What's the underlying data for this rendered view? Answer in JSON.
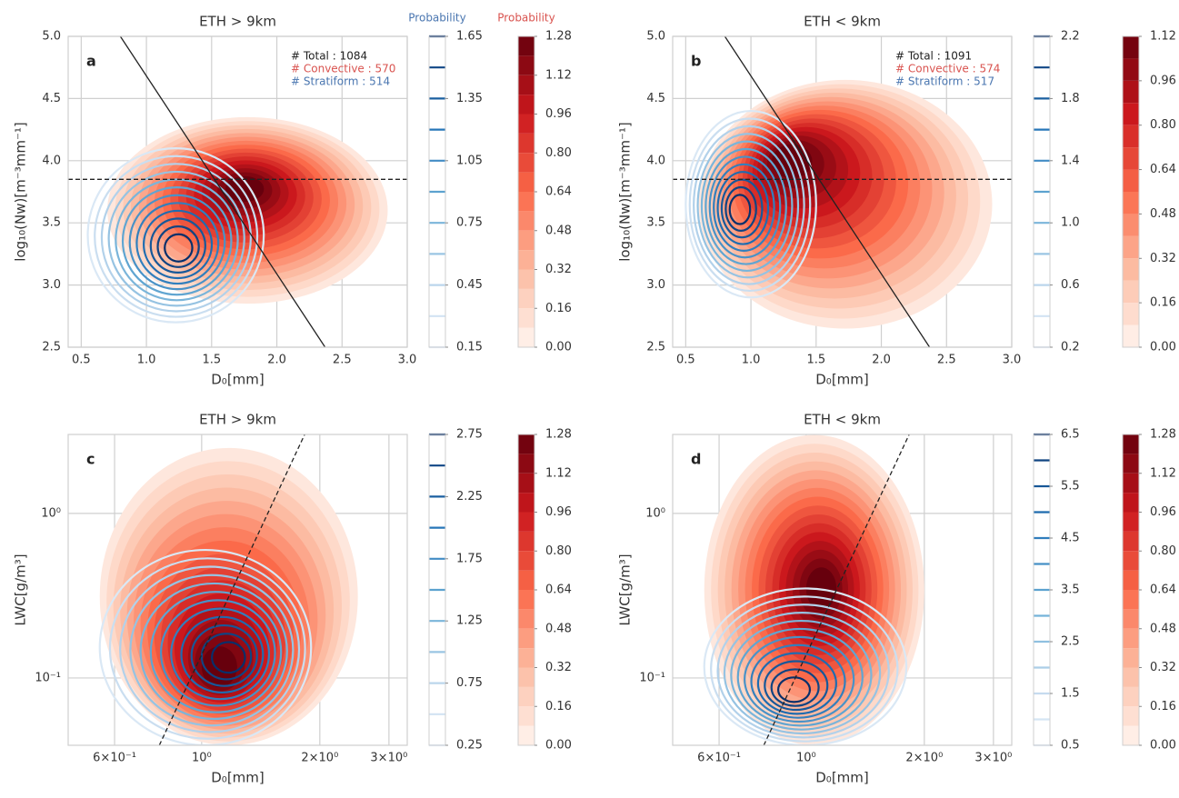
{
  "chart_data": [
    {
      "type": "contour",
      "title": "ETH > 9km",
      "panel_label": "a",
      "xlabel": "D₀[mm]",
      "ylabel": "log₁₀(Nw)[m⁻³mm⁻¹]",
      "xlim": [
        0.4,
        3.0
      ],
      "xticks": [
        0.5,
        {
          "value": 1,
          "label": "1.0"
        },
        1.5,
        {
          "value": 2,
          "label": "2.0"
        },
        2.5,
        {
          "value": 3,
          "label": "3.0"
        }
      ],
      "ylim": [
        2.5,
        5.0
      ],
      "yticks": [
        2.5,
        {
          "value": 3,
          "label": "3.0"
        },
        3.5,
        {
          "value": 4,
          "label": "4.0"
        },
        4.5,
        {
          "value": 5,
          "label": "5.0"
        }
      ],
      "annotations": [
        {
          "text": "# Total : 1084",
          "color": "#222222"
        },
        {
          "text": "# Convective : 570",
          "color": "#d9534f"
        },
        {
          "text": "# Stratiform : 514",
          "color": "#4a76b0"
        }
      ],
      "lines": [
        {
          "x": [
            0.8,
            2.37
          ],
          "y": [
            5.0,
            2.5
          ],
          "style": "solid"
        },
        {
          "x": [
            0.4,
            3.0
          ],
          "y": [
            3.85,
            3.85
          ],
          "style": "dashed"
        }
      ],
      "series": [
        {
          "colormap": "reds",
          "peak": [
            1.75,
            3.8
          ],
          "xrange": [
            0.7,
            2.85
          ],
          "yrange": [
            2.85,
            4.35
          ],
          "colorbar": {
            "label": "Probability",
            "lim": [
              0,
              1.28
            ],
            "ticks": [
              {
                "value": 0,
                "label": "0.00"
              },
              0.16,
              0.32,
              0.48,
              0.64,
              {
                "value": 0.8,
                "label": "0.80"
              },
              0.96,
              1.12,
              1.28
            ]
          }
        },
        {
          "colormap": "blues",
          "peak": [
            1.25,
            3.28
          ],
          "xrange": [
            0.55,
            1.9
          ],
          "yrange": [
            2.7,
            4.1
          ],
          "colorbar": {
            "label": "Probability",
            "lim": [
              0.15,
              1.65
            ],
            "ticks": [
              0.15,
              0.45,
              0.75,
              1.05,
              1.35,
              1.65
            ]
          }
        }
      ]
    },
    {
      "type": "contour",
      "title": "ETH < 9km",
      "panel_label": "b",
      "xlabel": "D₀[mm]",
      "ylabel": "log₁₀(Nw)[m⁻³mm⁻¹]",
      "xlim": [
        0.4,
        3.0
      ],
      "xticks": [
        0.5,
        {
          "value": 1,
          "label": "1.0"
        },
        1.5,
        {
          "value": 2,
          "label": "2.0"
        },
        2.5,
        {
          "value": 3,
          "label": "3.0"
        }
      ],
      "ylim": [
        2.5,
        5.0
      ],
      "yticks": [
        2.5,
        {
          "value": 3,
          "label": "3.0"
        },
        3.5,
        {
          "value": 4,
          "label": "4.0"
        },
        4.5,
        {
          "value": 5,
          "label": "5.0"
        }
      ],
      "annotations": [
        {
          "text": "# Total : 1091",
          "color": "#222222"
        },
        {
          "text": "# Convective : 574",
          "color": "#d9534f"
        },
        {
          "text": "# Stratiform : 517",
          "color": "#4a76b0"
        }
      ],
      "lines": [
        {
          "x": [
            0.8,
            2.37
          ],
          "y": [
            5.0,
            2.5
          ],
          "style": "solid"
        },
        {
          "x": [
            0.4,
            3.0
          ],
          "y": [
            3.85,
            3.85
          ],
          "style": "dashed"
        }
      ],
      "series": [
        {
          "colormap": "reds",
          "peak": [
            1.25,
            4.05
          ],
          "xrange": [
            0.6,
            2.85
          ],
          "yrange": [
            2.65,
            4.65
          ],
          "colorbar": {
            "lim": [
              0,
              1.12
            ],
            "ticks": [
              {
                "value": 0,
                "label": "0.00"
              },
              0.16,
              0.32,
              0.48,
              0.64,
              {
                "value": 0.8,
                "label": "0.80"
              },
              0.96,
              1.12
            ]
          }
        },
        {
          "colormap": "blues",
          "peak": [
            0.9,
            3.6
          ],
          "xrange": [
            0.5,
            1.5
          ],
          "yrange": [
            2.9,
            4.4
          ],
          "colorbar": {
            "lim": [
              0.2,
              2.2
            ],
            "ticks": [
              0.2,
              0.6,
              {
                "value": 1,
                "label": "1.0"
              },
              1.4,
              1.8,
              2.2
            ]
          }
        }
      ]
    },
    {
      "type": "contour",
      "title": "ETH > 9km",
      "panel_label": "c",
      "xlabel": "D₀[mm]",
      "ylabel": "LWC[g/m³]",
      "xscale": "log",
      "yscale": "log",
      "xlim": [
        0.457,
        3.34
      ],
      "xticks": [
        {
          "value": 0.6,
          "label": "6×10⁻¹"
        },
        {
          "value": 1,
          "label": "10⁰"
        },
        {
          "value": 2,
          "label": "2×10⁰"
        },
        {
          "value": 3,
          "label": "3×10⁰"
        }
      ],
      "ylim": [
        0.039,
        3.02
      ],
      "yticks": [
        {
          "value": 0.1,
          "label": "10⁻¹"
        },
        {
          "value": 1,
          "label": "10⁰"
        }
      ],
      "lines": [
        {
          "x": [
            0.78,
            1.83
          ],
          "y": [
            0.039,
            3.02
          ],
          "style": "dashed"
        }
      ],
      "series": [
        {
          "colormap": "reds",
          "peak": [
            1.1,
            0.1
          ],
          "xrange": [
            0.55,
            2.5
          ],
          "yrange": [
            0.039,
            2.5
          ],
          "colorbar": {
            "lim": [
              0,
              1.28
            ],
            "ticks": [
              {
                "value": 0,
                "label": "0.00"
              },
              0.16,
              0.32,
              0.48,
              0.64,
              {
                "value": 0.8,
                "label": "0.80"
              },
              0.96,
              1.12,
              1.28
            ]
          }
        },
        {
          "colormap": "blues",
          "peak": [
            1.2,
            0.13
          ],
          "xrange": [
            0.55,
            1.9
          ],
          "yrange": [
            0.039,
            0.6
          ],
          "colorbar": {
            "lim": [
              0.25,
              2.75
            ],
            "ticks": [
              0.25,
              0.75,
              1.25,
              1.75,
              2.25,
              2.75
            ]
          }
        }
      ]
    },
    {
      "type": "contour",
      "title": "ETH < 9km",
      "panel_label": "d",
      "xlabel": "D₀[mm]",
      "ylabel": "LWC[g/m³]",
      "xscale": "log",
      "yscale": "log",
      "xlim": [
        0.457,
        3.34
      ],
      "xticks": [
        {
          "value": 0.6,
          "label": "6×10⁻¹"
        },
        {
          "value": 1,
          "label": "10⁰"
        },
        {
          "value": 2,
          "label": "2×10⁰"
        },
        {
          "value": 3,
          "label": "3×10⁰"
        }
      ],
      "ylim": [
        0.039,
        3.02
      ],
      "yticks": [
        {
          "value": 0.1,
          "label": "10⁻¹"
        },
        {
          "value": 1,
          "label": "10⁰"
        }
      ],
      "lines": [
        {
          "x": [
            0.78,
            1.83
          ],
          "y": [
            0.039,
            3.02
          ],
          "style": "dashed"
        }
      ],
      "series": [
        {
          "colormap": "reds",
          "peak": [
            1.1,
            0.35
          ],
          "xrange": [
            0.55,
            2.0
          ],
          "yrange": [
            0.039,
            3.0
          ],
          "colorbar": {
            "lim": [
              0,
              1.28
            ],
            "ticks": [
              {
                "value": 0,
                "label": "0.00"
              },
              0.16,
              0.32,
              0.48,
              0.64,
              {
                "value": 0.8,
                "label": "0.80"
              },
              0.96,
              1.12,
              1.28
            ]
          }
        },
        {
          "colormap": "blues",
          "peak": [
            0.92,
            0.08
          ],
          "xrange": [
            0.55,
            1.8
          ],
          "yrange": [
            0.039,
            0.35
          ],
          "colorbar": {
            "lim": [
              0.5,
              6.5
            ],
            "ticks": [
              0.5,
              1.5,
              2.5,
              3.5,
              4.5,
              5.5,
              6.5
            ]
          }
        }
      ]
    }
  ]
}
